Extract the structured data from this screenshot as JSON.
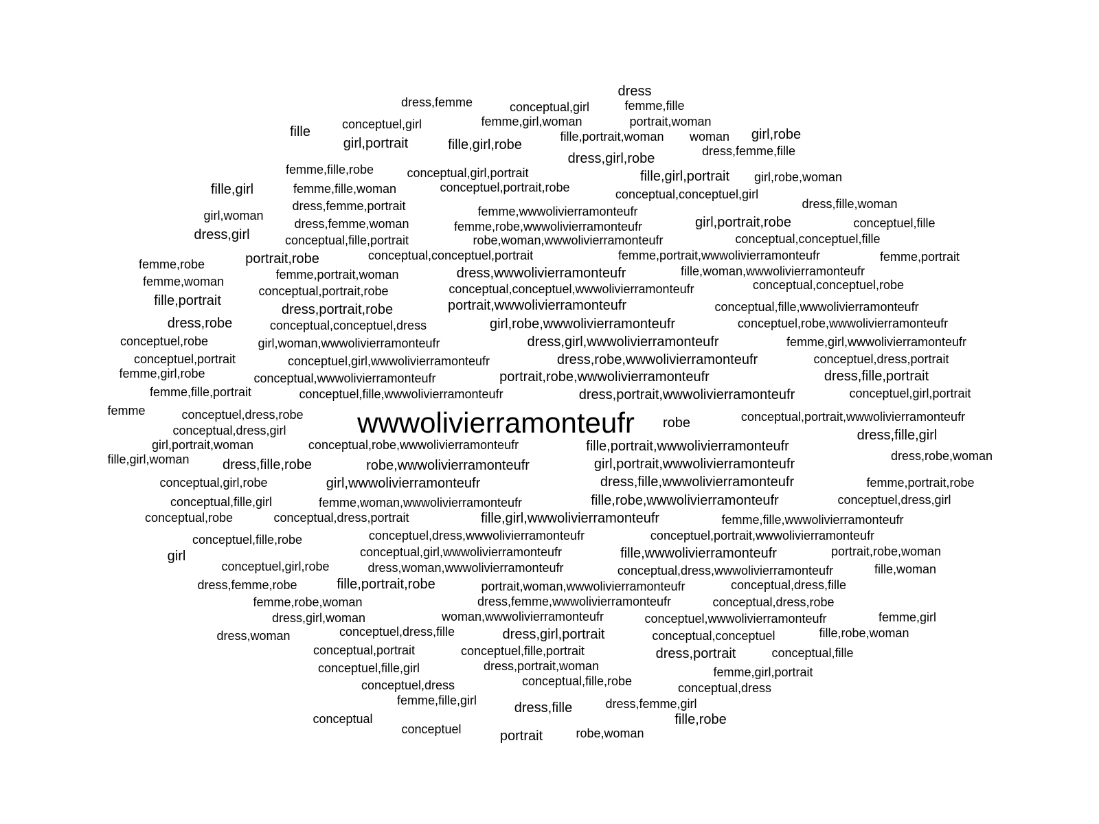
{
  "words": [
    "dress",
    "dress,femme",
    "conceptual,girl",
    "femme,fille",
    "femme,girl,woman",
    "portrait,woman",
    "fille",
    "conceptuel,girl",
    "fille,portrait,woman",
    "woman",
    "girl,robe",
    "girl,portrait",
    "fille,girl,robe",
    "dress,femme,fille",
    "dress,girl,robe",
    "femme,fille,robe",
    "conceptual,girl,portrait",
    "fille,girl,portrait",
    "girl,robe,woman",
    "fille,girl",
    "femme,fille,woman",
    "conceptuel,portrait,robe",
    "conceptual,conceptuel,girl",
    "dress,femme,portrait",
    "dress,fille,woman",
    "girl,woman",
    "femme,wwwolivierramonteufr",
    "dress,femme,woman",
    "femme,robe,wwwolivierramonteufr",
    "girl,portrait,robe",
    "conceptuel,fille",
    "dress,girl",
    "conceptual,fille,portrait",
    "robe,woman,wwwolivierramonteufr",
    "conceptual,conceptuel,fille",
    "portrait,robe",
    "conceptual,conceptuel,portrait",
    "femme,portrait,wwwolivierramonteufr",
    "femme,portrait",
    "femme,robe",
    "femme,portrait,woman",
    "dress,wwwolivierramonteufr",
    "fille,woman,wwwolivierramonteufr",
    "femme,woman",
    "conceptual,portrait,robe",
    "conceptual,conceptuel,wwwolivierramonteufr",
    "conceptual,conceptuel,robe",
    "fille,portrait",
    "dress,portrait,robe",
    "portrait,wwwolivierramonteufr",
    "conceptual,fille,wwwolivierramonteufr",
    "dress,robe",
    "conceptual,conceptuel,dress",
    "girl,robe,wwwolivierramonteufr",
    "conceptuel,robe,wwwolivierramonteufr",
    "conceptuel,robe",
    "girl,woman,wwwolivierramonteufr",
    "dress,girl,wwwolivierramonteufr",
    "femme,girl,wwwolivierramonteufr",
    "conceptuel,portrait",
    "conceptuel,girl,wwwolivierramonteufr",
    "dress,robe,wwwolivierramonteufr",
    "conceptuel,dress,portrait",
    "femme,girl,robe",
    "conceptual,wwwolivierramonteufr",
    "portrait,robe,wwwolivierramonteufr",
    "dress,fille,portrait",
    "femme,fille,portrait",
    "conceptuel,fille,wwwolivierramonteufr",
    "dress,portrait,wwwolivierramonteufr",
    "conceptuel,girl,portrait",
    "femme",
    "conceptuel,dress,robe",
    "wwwolivierramonteufr",
    "robe",
    "conceptual,portrait,wwwolivierramonteufr",
    "conceptual,dress,girl",
    "dress,fille,girl",
    "girl,portrait,woman",
    "conceptual,robe,wwwolivierramonteufr",
    "fille,portrait,wwwolivierramonteufr",
    "fille,girl,woman",
    "dress,robe,woman",
    "dress,fille,robe",
    "robe,wwwolivierramonteufr",
    "girl,portrait,wwwolivierramonteufr",
    "conceptual,girl,robe",
    "girl,wwwolivierramonteufr",
    "dress,fille,wwwolivierramonteufr",
    "femme,portrait,robe",
    "conceptual,fille,girl",
    "femme,woman,wwwolivierramonteufr",
    "fille,robe,wwwolivierramonteufr",
    "conceptuel,dress,girl",
    "conceptual,robe",
    "conceptual,dress,portrait",
    "fille,girl,wwwolivierramonteufr",
    "femme,fille,wwwolivierramonteufr",
    "conceptuel,dress,wwwolivierramonteufr",
    "conceptuel,portrait,wwwolivierramonteufr",
    "conceptuel,fille,robe",
    "conceptual,girl,wwwolivierramonteufr",
    "fille,wwwolivierramonteufr",
    "portrait,robe,woman",
    "girl",
    "conceptuel,girl,robe",
    "dress,woman,wwwolivierramonteufr",
    "conceptual,dress,wwwolivierramonteufr",
    "fille,woman",
    "dress,femme,robe",
    "fille,portrait,robe",
    "portrait,woman,wwwolivierramonteufr",
    "conceptual,dress,fille",
    "femme,robe,woman",
    "dress,femme,wwwolivierramonteufr",
    "conceptual,dress,robe",
    "dress,girl,woman",
    "woman,wwwolivierramonteufr",
    "conceptuel,wwwolivierramonteufr",
    "femme,girl",
    "conceptuel,dress,fille",
    "dress,girl,portrait",
    "fille,robe,woman",
    "dress,woman",
    "conceptual,conceptuel",
    "conceptual,portrait",
    "conceptuel,fille,portrait",
    "dress,portrait",
    "conceptual,fille",
    "conceptuel,fille,girl",
    "dress,portrait,woman",
    "femme,girl,portrait",
    "conceptuel,dress",
    "conceptual,fille,robe",
    "conceptual,dress",
    "femme,fille,girl",
    "dress,fille",
    "dress,femme,girl",
    "conceptual",
    "fille,robe",
    "conceptuel",
    "portrait",
    "robe,woman"
  ]
}
